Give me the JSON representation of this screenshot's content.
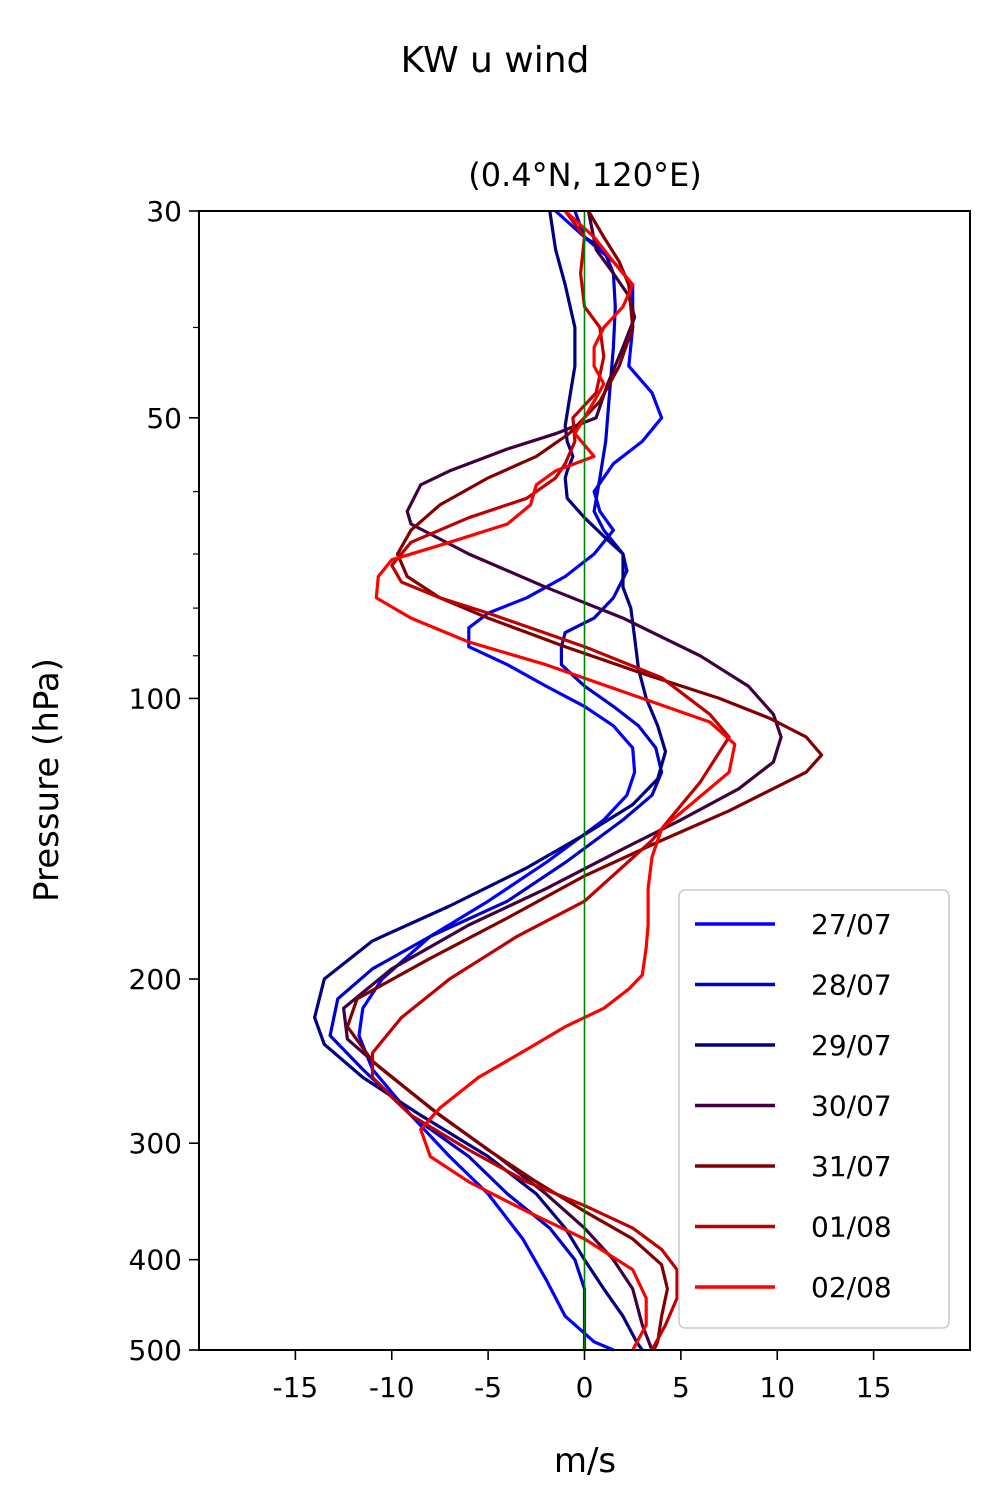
{
  "chart_data": {
    "type": "line",
    "suptitle": "KW u wind",
    "title": "(0.4°N, 120°E)",
    "xlabel": "m/s",
    "ylabel": "Pressure (hPa)",
    "xlim": [
      -20,
      20
    ],
    "ylim": [
      500,
      30
    ],
    "yscale": "log",
    "xticks": [
      -15,
      -10,
      -5,
      0,
      5,
      10,
      15
    ],
    "xtick_labels": [
      "-15",
      "-10",
      "-5",
      "0",
      "5",
      "10",
      "15"
    ],
    "yticks": [
      30,
      50,
      100,
      200,
      300,
      400,
      500
    ],
    "ytick_labels": [
      "30",
      "50",
      "100",
      "200",
      "300",
      "400",
      "500"
    ],
    "yminor_ticks": [
      40,
      60,
      70,
      80,
      90
    ],
    "zero_line": {
      "x": 0,
      "color": "#008000"
    },
    "grid": false,
    "legend_position": "lower-right",
    "series": [
      {
        "name": "27/07",
        "color": "#0000ff",
        "points": [
          [
            -1.5,
            30
          ],
          [
            0,
            32
          ],
          [
            1.5,
            34
          ],
          [
            2.5,
            36
          ],
          [
            2.5,
            40
          ],
          [
            2.3,
            44
          ],
          [
            3.5,
            47
          ],
          [
            4,
            50
          ],
          [
            3,
            53
          ],
          [
            1.5,
            56
          ],
          [
            0.5,
            60
          ],
          [
            0.8,
            63
          ],
          [
            1.5,
            66
          ],
          [
            0.5,
            70
          ],
          [
            -1,
            74
          ],
          [
            -3,
            78
          ],
          [
            -5,
            81
          ],
          [
            -6,
            84
          ],
          [
            -6,
            88
          ],
          [
            -4,
            92
          ],
          [
            -2,
            97
          ],
          [
            0,
            102
          ],
          [
            1.5,
            107
          ],
          [
            2.5,
            113
          ],
          [
            2.6,
            120
          ],
          [
            2.2,
            127
          ],
          [
            1,
            135
          ],
          [
            -2,
            150
          ],
          [
            -5,
            165
          ],
          [
            -8,
            180
          ],
          [
            -10.5,
            200
          ],
          [
            -11.5,
            215
          ],
          [
            -11.7,
            230
          ],
          [
            -11,
            250
          ],
          [
            -9,
            280
          ],
          [
            -7,
            310
          ],
          [
            -5,
            340
          ],
          [
            -3.2,
            380
          ],
          [
            -2,
            420
          ],
          [
            -1,
            460
          ],
          [
            0.5,
            490
          ],
          [
            1.5,
            500
          ]
        ]
      },
      {
        "name": "28/07",
        "color": "#0000cc",
        "points": [
          [
            -0.5,
            30
          ],
          [
            0,
            32
          ],
          [
            1,
            33
          ],
          [
            1.5,
            35
          ],
          [
            1.6,
            38
          ],
          [
            1.5,
            42
          ],
          [
            1.3,
            47
          ],
          [
            1.2,
            50
          ],
          [
            1.1,
            53
          ],
          [
            0.8,
            58
          ],
          [
            0.5,
            63
          ],
          [
            1,
            66
          ],
          [
            2,
            70
          ],
          [
            2.2,
            73
          ],
          [
            1.5,
            78
          ],
          [
            0.5,
            82
          ],
          [
            -1,
            85
          ],
          [
            -1.2,
            88
          ],
          [
            -1.2,
            92
          ],
          [
            0,
            97
          ],
          [
            1.5,
            102
          ],
          [
            2.8,
            107
          ],
          [
            3.7,
            113
          ],
          [
            4,
            120
          ],
          [
            3.5,
            127
          ],
          [
            2,
            135
          ],
          [
            -1,
            150
          ],
          [
            -4,
            165
          ],
          [
            -8,
            180
          ],
          [
            -11,
            195
          ],
          [
            -12.8,
            210
          ],
          [
            -13.2,
            230
          ],
          [
            -11.5,
            250
          ],
          [
            -9,
            280
          ],
          [
            -6,
            310
          ],
          [
            -4,
            340
          ],
          [
            -1.8,
            370
          ],
          [
            -0.5,
            400
          ],
          [
            0,
            430
          ],
          [
            0,
            470
          ],
          [
            0,
            500
          ]
        ]
      },
      {
        "name": "29/07",
        "color": "#000080",
        "points": [
          [
            -1.8,
            30
          ],
          [
            -1.5,
            33
          ],
          [
            -1,
            36
          ],
          [
            -0.5,
            40
          ],
          [
            -0.5,
            44
          ],
          [
            -0.8,
            48
          ],
          [
            -1,
            51
          ],
          [
            -0.9,
            53
          ],
          [
            -0.6,
            55
          ],
          [
            -0.9,
            57
          ],
          [
            -1,
            58
          ],
          [
            -0.9,
            61
          ],
          [
            0,
            64
          ],
          [
            1,
            67
          ],
          [
            2,
            70
          ],
          [
            2,
            73
          ],
          [
            2,
            76
          ],
          [
            2.4,
            80
          ],
          [
            2.6,
            86
          ],
          [
            2.8,
            93
          ],
          [
            3.2,
            100
          ],
          [
            3.8,
            107
          ],
          [
            4.2,
            114
          ],
          [
            3.8,
            122
          ],
          [
            2.5,
            130
          ],
          [
            0,
            140
          ],
          [
            -3,
            152
          ],
          [
            -7,
            167
          ],
          [
            -11,
            182
          ],
          [
            -13.5,
            200
          ],
          [
            -14,
            220
          ],
          [
            -13.5,
            235
          ],
          [
            -11.5,
            255
          ],
          [
            -8.5,
            280
          ],
          [
            -5,
            310
          ],
          [
            -2.5,
            340
          ],
          [
            -1,
            370
          ],
          [
            0,
            400
          ],
          [
            1,
            430
          ],
          [
            2,
            460
          ],
          [
            2.7,
            490
          ],
          [
            3,
            500
          ]
        ]
      },
      {
        "name": "30/07",
        "color": "#3f003f",
        "points": [
          [
            0.2,
            30
          ],
          [
            0.6,
            33
          ],
          [
            1.5,
            35
          ],
          [
            2.3,
            37
          ],
          [
            2.6,
            39
          ],
          [
            2,
            42
          ],
          [
            1.2,
            46
          ],
          [
            0.6,
            50
          ],
          [
            -1.5,
            52
          ],
          [
            -4,
            54
          ],
          [
            -7,
            57
          ],
          [
            -8.5,
            59
          ],
          [
            -9.2,
            63
          ],
          [
            -9,
            65
          ],
          [
            -6,
            70
          ],
          [
            -2,
            76
          ],
          [
            2,
            82
          ],
          [
            6,
            90
          ],
          [
            8.5,
            97
          ],
          [
            9.8,
            104
          ],
          [
            10.2,
            110
          ],
          [
            9.8,
            117
          ],
          [
            8,
            125
          ],
          [
            5,
            135
          ],
          [
            2,
            145
          ],
          [
            -2,
            160
          ],
          [
            -6,
            175
          ],
          [
            -10,
            195
          ],
          [
            -12.5,
            215
          ],
          [
            -12.3,
            232
          ],
          [
            -10.5,
            250
          ],
          [
            -7.5,
            280
          ],
          [
            -4.5,
            310
          ],
          [
            -2,
            340
          ],
          [
            0,
            370
          ],
          [
            1.5,
            400
          ],
          [
            2.5,
            430
          ],
          [
            3,
            470
          ],
          [
            3.5,
            500
          ]
        ]
      },
      {
        "name": "31/07",
        "color": "#800000",
        "points": [
          [
            0.2,
            30
          ],
          [
            1,
            32
          ],
          [
            1.8,
            34
          ],
          [
            2.3,
            36
          ],
          [
            2.5,
            40
          ],
          [
            1.8,
            44
          ],
          [
            0.8,
            48
          ],
          [
            -0.8,
            52
          ],
          [
            -2.5,
            55
          ],
          [
            -5,
            58
          ],
          [
            -7.5,
            62
          ],
          [
            -9,
            66
          ],
          [
            -9.7,
            70
          ],
          [
            -9.2,
            74
          ],
          [
            -7.5,
            78
          ],
          [
            -5,
            82
          ],
          [
            -1,
            88
          ],
          [
            3,
            94
          ],
          [
            7,
            100
          ],
          [
            9.6,
            105
          ],
          [
            11.5,
            110
          ],
          [
            12.3,
            115
          ],
          [
            11.5,
            120
          ],
          [
            7.5,
            132
          ],
          [
            4,
            142
          ],
          [
            0,
            155
          ],
          [
            -4,
            172
          ],
          [
            -8,
            190
          ],
          [
            -11.8,
            210
          ],
          [
            -12.3,
            225
          ],
          [
            -11,
            245
          ],
          [
            -8,
            275
          ],
          [
            -5,
            305
          ],
          [
            -2.5,
            330
          ],
          [
            0,
            355
          ],
          [
            2.5,
            380
          ],
          [
            4,
            405
          ],
          [
            4.3,
            430
          ],
          [
            4,
            460
          ],
          [
            3.8,
            490
          ],
          [
            3.6,
            500
          ]
        ]
      },
      {
        "name": "01/08",
        "color": "#bf0000",
        "points": [
          [
            -1,
            30
          ],
          [
            0,
            32
          ],
          [
            -0.2,
            35
          ],
          [
            0,
            38
          ],
          [
            0.8,
            40
          ],
          [
            1,
            43
          ],
          [
            0.6,
            47
          ],
          [
            -0.6,
            50
          ],
          [
            -0.5,
            53
          ],
          [
            -1,
            56
          ],
          [
            -1.5,
            58
          ],
          [
            -3,
            61
          ],
          [
            -6,
            64
          ],
          [
            -9,
            68
          ],
          [
            -10,
            72
          ],
          [
            -9.5,
            75
          ],
          [
            -7.5,
            78
          ],
          [
            -5,
            81
          ],
          [
            0,
            88
          ],
          [
            4,
            95
          ],
          [
            6.5,
            104
          ],
          [
            7.5,
            110
          ],
          [
            6,
            123
          ],
          [
            3.5,
            142
          ],
          [
            0,
            165
          ],
          [
            -3.5,
            180
          ],
          [
            -7,
            200
          ],
          [
            -9.5,
            220
          ],
          [
            -11,
            240
          ],
          [
            -11,
            255
          ],
          [
            -9,
            280
          ],
          [
            -6,
            305
          ],
          [
            -3,
            330
          ],
          [
            0,
            350
          ],
          [
            2.5,
            370
          ],
          [
            4,
            390
          ],
          [
            4.8,
            410
          ],
          [
            4.8,
            440
          ],
          [
            4.2,
            470
          ],
          [
            3.5,
            500
          ]
        ]
      },
      {
        "name": "02/08",
        "color": "#ff0000",
        "points": [
          [
            -1,
            30
          ],
          [
            0.5,
            32
          ],
          [
            1.5,
            34
          ],
          [
            2.5,
            36
          ],
          [
            2,
            38
          ],
          [
            1,
            40
          ],
          [
            0.5,
            42
          ],
          [
            0.5,
            44
          ],
          [
            1,
            46
          ],
          [
            0.5,
            48
          ],
          [
            -0.5,
            52
          ],
          [
            0.5,
            55
          ],
          [
            -1.5,
            57
          ],
          [
            -2.5,
            59
          ],
          [
            -2.8,
            62
          ],
          [
            -4,
            65
          ],
          [
            -7,
            68
          ],
          [
            -10,
            71
          ],
          [
            -10.7,
            74
          ],
          [
            -10.8,
            78
          ],
          [
            -9,
            82
          ],
          [
            -6,
            87
          ],
          [
            -2,
            92
          ],
          [
            3,
            100
          ],
          [
            6.5,
            106
          ],
          [
            7.8,
            112
          ],
          [
            7.5,
            120
          ],
          [
            5.5,
            130
          ],
          [
            4,
            138
          ],
          [
            3.5,
            148
          ],
          [
            3.3,
            160
          ],
          [
            3.3,
            175
          ],
          [
            3.2,
            185
          ],
          [
            3,
            198
          ],
          [
            2.3,
            205
          ],
          [
            1,
            215
          ],
          [
            -1,
            225
          ],
          [
            -3,
            238
          ],
          [
            -5.5,
            255
          ],
          [
            -7.5,
            275
          ],
          [
            -8.5,
            290
          ],
          [
            -8,
            310
          ],
          [
            -6,
            330
          ],
          [
            -3,
            355
          ],
          [
            0,
            380
          ],
          [
            2.5,
            410
          ],
          [
            3.2,
            440
          ],
          [
            3.2,
            470
          ],
          [
            2.5,
            500
          ]
        ]
      }
    ]
  }
}
